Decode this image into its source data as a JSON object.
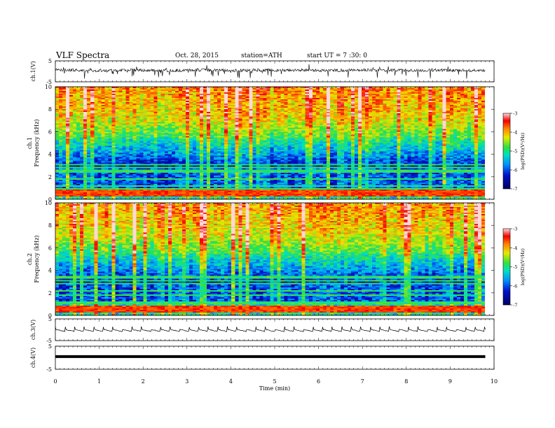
{
  "header": {
    "title": "VLF  Spectra",
    "date": "Oct. 28, 2015",
    "station": "station=ATH",
    "start": "start  UT  =   7  :30: 0"
  },
  "chart_data": [
    {
      "type": "line",
      "id": "ch1-waveform",
      "ylabel": "ch.1(V)",
      "ylim": [
        -5,
        5
      ],
      "yticks": [
        "5",
        "-5"
      ],
      "xlim": [
        0,
        10
      ],
      "description_level": "noisy signal near +0.5 V with frequent negative spikes",
      "x": [
        0,
        0.5,
        1,
        1.5,
        2,
        2.5,
        3,
        3.5,
        4,
        4.5,
        5,
        5.5,
        6,
        6.5,
        7,
        7.5,
        8,
        8.5,
        9,
        9.5,
        9.8
      ],
      "values": [
        0.6,
        0.4,
        0.5,
        0.6,
        0.5,
        0.4,
        0.6,
        0.5,
        0.4,
        0.6,
        0.5,
        0.6,
        0.4,
        0.5,
        0.6,
        0.5,
        0.4,
        0.6,
        0.5,
        0.5,
        0.6
      ]
    },
    {
      "type": "heatmap",
      "id": "ch1-spectrogram",
      "ylabel": "ch.1\nFrequency (kHz)",
      "ylim": [
        0,
        10
      ],
      "yticks": [
        "0",
        "2",
        "4",
        "6",
        "8",
        "10"
      ],
      "xlim": [
        0,
        10
      ],
      "colorbar": {
        "label": "log(PSD)(V²/Hz)",
        "range": [
          -7,
          -3
        ],
        "ticks": [
          "-3",
          "-4",
          "-5",
          "-6",
          "-7"
        ]
      }
    },
    {
      "type": "heatmap",
      "id": "ch2-spectrogram",
      "ylabel": "ch.2\nFrequency (kHz)",
      "ylim": [
        0,
        10
      ],
      "yticks": [
        "0",
        "2",
        "4",
        "6",
        "8",
        "10"
      ],
      "xlim": [
        0,
        10
      ],
      "colorbar": {
        "label": "log(PSD)(V²/Hz)",
        "range": [
          -7,
          -3
        ],
        "ticks": [
          "-3",
          "-4",
          "-5",
          "-6",
          "-7"
        ]
      }
    },
    {
      "type": "line",
      "id": "ch3-waveform",
      "ylabel": "ch.3(V)",
      "ylim": [
        -5,
        5
      ],
      "yticks": [
        "5",
        "-5"
      ],
      "xlim": [
        0,
        10
      ],
      "x": [
        0,
        1,
        2,
        3,
        4,
        5,
        6,
        7,
        8,
        9,
        9.8
      ],
      "values": [
        0.0,
        0.2,
        0.0,
        0.3,
        0.0,
        0.2,
        0.1,
        0.3,
        0.0,
        0.2,
        0.1
      ]
    },
    {
      "type": "line",
      "id": "ch4-waveform",
      "ylabel": "ch.4(V)",
      "ylim": [
        -5,
        5
      ],
      "yticks": [
        "5",
        "-5"
      ],
      "xlim": [
        0,
        10
      ],
      "x": [
        0,
        9.8
      ],
      "values": [
        0.5,
        0.5
      ]
    }
  ],
  "xaxis": {
    "label": "Time  (min)",
    "ticks": [
      "0",
      "1",
      "2",
      "3",
      "4",
      "5",
      "6",
      "7",
      "8",
      "9",
      "10"
    ]
  }
}
